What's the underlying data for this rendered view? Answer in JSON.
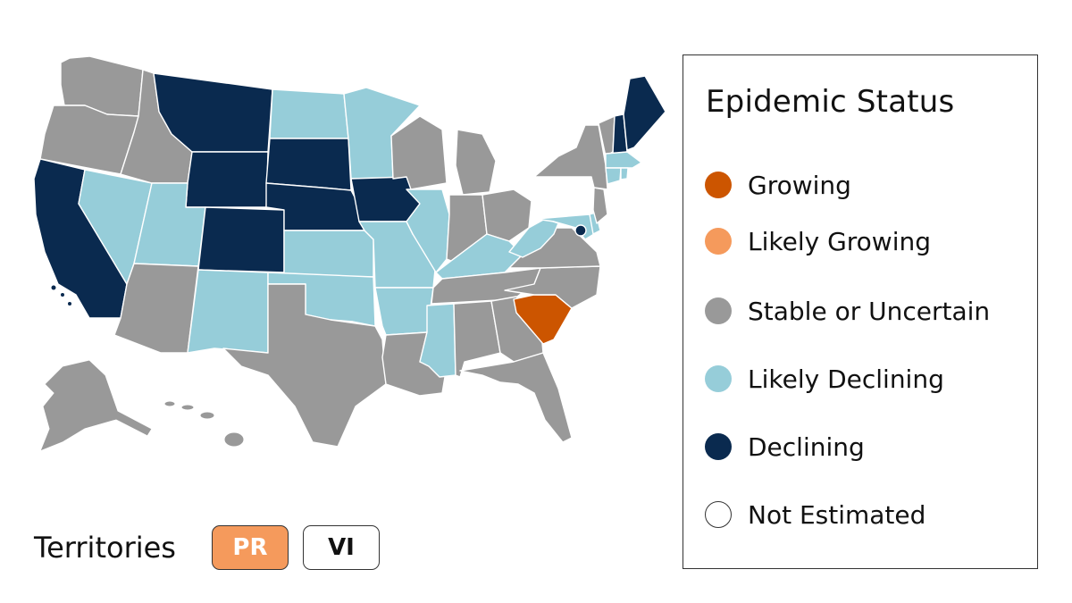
{
  "legend": {
    "title": "Epidemic Status",
    "items": [
      {
        "key": "growing",
        "label": "Growing",
        "color": "#cc5500"
      },
      {
        "key": "likely_growing",
        "label": "Likely Growing",
        "color": "#f59a5c"
      },
      {
        "key": "stable",
        "label": "Stable or Uncertain",
        "color": "#999999"
      },
      {
        "key": "likely_declining",
        "label": "Likely Declining",
        "color": "#96cdd9"
      },
      {
        "key": "declining",
        "label": "Declining",
        "color": "#0a2a4f"
      },
      {
        "key": "not_estimated",
        "label": "Not Estimated",
        "color": "#ffffff"
      }
    ]
  },
  "territories": {
    "label": "Territories",
    "items": [
      {
        "code": "PR",
        "status": "likely_growing"
      },
      {
        "code": "VI",
        "status": "not_estimated"
      }
    ]
  },
  "state_status": {
    "WA": "stable",
    "OR": "stable",
    "CA": "declining",
    "NV": "likely_declining",
    "ID": "stable",
    "MT": "declining",
    "WY": "declining",
    "UT": "likely_declining",
    "CO": "declining",
    "AZ": "stable",
    "NM": "likely_declining",
    "ND": "likely_declining",
    "SD": "declining",
    "NE": "declining",
    "KS": "likely_declining",
    "OK": "likely_declining",
    "TX": "stable",
    "MN": "likely_declining",
    "IA": "declining",
    "MO": "likely_declining",
    "AR": "likely_declining",
    "LA": "stable",
    "WI": "stable",
    "IL": "likely_declining",
    "MI": "stable",
    "IN": "stable",
    "OH": "stable",
    "KY": "likely_declining",
    "TN": "stable",
    "MS": "likely_declining",
    "AL": "stable",
    "GA": "stable",
    "FL": "stable",
    "SC": "growing",
    "NC": "stable",
    "VA": "stable",
    "WV": "likely_declining",
    "MD": "likely_declining",
    "DE": "likely_declining",
    "DC": "declining",
    "PA": "not_estimated",
    "NJ": "stable",
    "NY": "stable",
    "CT": "likely_declining",
    "RI": "likely_declining",
    "MA": "likely_declining",
    "VT": "stable",
    "NH": "declining",
    "ME": "declining",
    "AK": "stable",
    "HI": "stable"
  }
}
